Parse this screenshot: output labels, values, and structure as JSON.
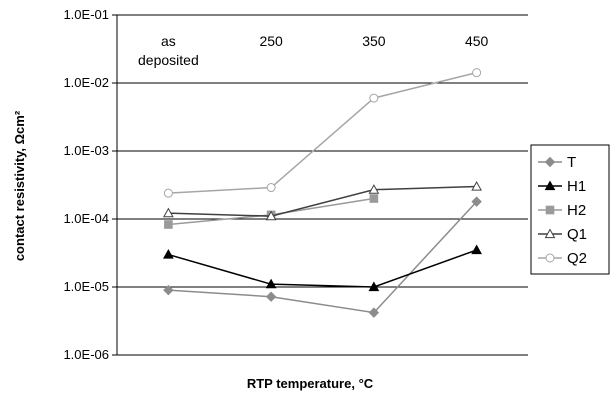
{
  "chart_data": {
    "type": "line",
    "title": "",
    "xlabel": "RTP temperature, °C",
    "ylabel": "contact resistivity, Ωcm²",
    "yscale": "log",
    "ylim": [
      1e-06,
      0.1
    ],
    "y_ticks": [
      "1.0E-01",
      "1.0E-02",
      "1.0E-03",
      "1.0E-04",
      "1.0E-05",
      "1.0E-06"
    ],
    "categories": [
      "as deposited",
      "250",
      "350",
      "450"
    ],
    "category_lines": [
      [
        "as",
        "deposited"
      ],
      [
        "250"
      ],
      [
        "350"
      ],
      [
        "450"
      ]
    ],
    "grid": "horizontal",
    "legend_position": "right",
    "series": [
      {
        "name": "T",
        "marker": "diamond",
        "color": "#8c8c8c",
        "values": [
          9e-06,
          7.2e-06,
          4.2e-06,
          0.00018
        ]
      },
      {
        "name": "H1",
        "marker": "filled-triangle",
        "color": "#000000",
        "values": [
          3e-05,
          1.1e-05,
          1e-05,
          3.5e-05
        ]
      },
      {
        "name": "H2",
        "marker": "square",
        "color": "#9a9a9a",
        "values": [
          8.3e-05,
          0.000115,
          0.0002,
          null
        ]
      },
      {
        "name": "Q1",
        "marker": "open-triangle",
        "color": "#404040",
        "values": [
          0.000122,
          0.00011,
          0.00027,
          0.0003
        ]
      },
      {
        "name": "Q2",
        "marker": "open-circle",
        "color": "#a6a6a6",
        "values": [
          0.00024,
          0.00029,
          0.006,
          0.0142
        ]
      }
    ]
  }
}
